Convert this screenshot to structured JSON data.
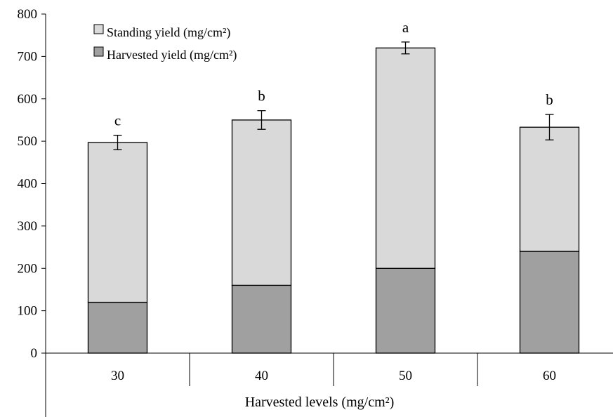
{
  "chart_data": {
    "type": "bar",
    "stacked": true,
    "title": "",
    "xlabel": "Harvested levels (mg/cm²)",
    "ylabel": "",
    "categories": [
      "30",
      "40",
      "50",
      "60"
    ],
    "ylim": [
      0,
      800
    ],
    "yticks": [
      "0",
      "100",
      "200",
      "300",
      "400",
      "500",
      "600",
      "700",
      "800"
    ],
    "grid": false,
    "legend_position": "top-left",
    "series": [
      {
        "name": "Harvested yield (mg/cm²)",
        "color": "#a0a0a0",
        "values": [
          120,
          160,
          200,
          240
        ]
      },
      {
        "name": "Standing yield (mg/cm²)",
        "color": "#d9d9d9",
        "values": [
          377,
          390,
          520,
          293
        ]
      }
    ],
    "totals": [
      497,
      550,
      720,
      533
    ],
    "error_bars": [
      17,
      22,
      14,
      30
    ],
    "significance_labels": [
      "c",
      "b",
      "a",
      "b"
    ]
  }
}
